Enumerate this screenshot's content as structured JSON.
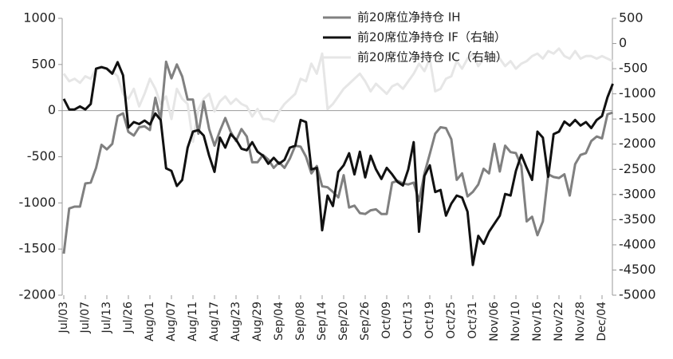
{
  "chart_data": {
    "type": "line",
    "categories": [
      "Jul/03",
      null,
      null,
      null,
      "Jul/07",
      null,
      null,
      null,
      "Jul/13",
      null,
      null,
      null,
      "Jul/26",
      null,
      null,
      null,
      "Aug/01",
      null,
      null,
      null,
      "Aug/07",
      null,
      null,
      null,
      "Aug/11",
      null,
      null,
      null,
      "Aug/17",
      null,
      null,
      null,
      "Aug/23",
      null,
      null,
      null,
      "Aug/29",
      null,
      null,
      null,
      "Sep/04",
      null,
      null,
      null,
      "Sep/08",
      null,
      null,
      null,
      "Sep/14",
      null,
      null,
      null,
      "Sep/20",
      null,
      null,
      null,
      "Sep/26",
      null,
      null,
      null,
      "Oct/09",
      null,
      null,
      null,
      "Oct/13",
      null,
      null,
      null,
      "Oct/19",
      null,
      null,
      null,
      "Oct/25",
      null,
      null,
      null,
      "Oct/31",
      null,
      null,
      null,
      "Nov/06",
      null,
      null,
      null,
      "Nov/10",
      null,
      null,
      null,
      "Nov/16",
      null,
      null,
      null,
      "Nov/22",
      null,
      null,
      null,
      "Nov/28",
      null,
      null,
      null,
      "Dec/04",
      null,
      null
    ],
    "series": [
      {
        "name": "前20席位净持仓 IH",
        "color": "#808080",
        "values": [
          -1550,
          -1060,
          -1040,
          -1040,
          -790,
          -780,
          -620,
          -370,
          -420,
          -360,
          -60,
          -30,
          -230,
          -270,
          -180,
          -170,
          -210,
          140,
          -100,
          530,
          350,
          500,
          370,
          120,
          120,
          -250,
          100,
          -200,
          -380,
          -220,
          -80,
          -230,
          -330,
          -200,
          -280,
          -560,
          -560,
          -480,
          -530,
          -620,
          -560,
          -620,
          -520,
          -380,
          -390,
          -500,
          -680,
          -600,
          -820,
          -830,
          -880,
          -940,
          -700,
          -1050,
          -1030,
          -1110,
          -1120,
          -1080,
          -1070,
          -1120,
          -1120,
          -780,
          -760,
          -790,
          -800,
          -780,
          -980,
          -680,
          -470,
          -250,
          -180,
          -190,
          -310,
          -750,
          -680,
          -930,
          -880,
          -800,
          -630,
          -680,
          -360,
          -660,
          -380,
          -450,
          -460,
          -600,
          -1200,
          -1150,
          -1350,
          -1200,
          -690,
          -720,
          -730,
          -690,
          -920,
          -580,
          -480,
          -460,
          -330,
          -280,
          -300,
          -40,
          -20
        ]
      },
      {
        "name": "前20席位净持仓 IF（右轴）",
        "color": "#111111",
        "axis": "y2",
        "values": [
          -1100,
          -1310,
          -1310,
          -1250,
          -1310,
          -1200,
          -500,
          -470,
          -500,
          -600,
          -370,
          -630,
          -1670,
          -1560,
          -1600,
          -1530,
          -1610,
          -1390,
          -1520,
          -2480,
          -2530,
          -2830,
          -2710,
          -2070,
          -1750,
          -1720,
          -1830,
          -2230,
          -2550,
          -1870,
          -2070,
          -1800,
          -1910,
          -2090,
          -2120,
          -1960,
          -2150,
          -2230,
          -2390,
          -2270,
          -2390,
          -2310,
          -2070,
          -2030,
          -1520,
          -1560,
          -2500,
          -2470,
          -3710,
          -3020,
          -3230,
          -2550,
          -2420,
          -2180,
          -2600,
          -2150,
          -2660,
          -2230,
          -2500,
          -2690,
          -2470,
          -2600,
          -2750,
          -2820,
          -2500,
          -1960,
          -3740,
          -2630,
          -2420,
          -2950,
          -2910,
          -3420,
          -3180,
          -3020,
          -3060,
          -3340,
          -4400,
          -3820,
          -3980,
          -3740,
          -3580,
          -3420,
          -2990,
          -3020,
          -2530,
          -2210,
          -2470,
          -2710,
          -1750,
          -1870,
          -2650,
          -1800,
          -1750,
          -1550,
          -1630,
          -1520,
          -1630,
          -1560,
          -1680,
          -1520,
          -1440,
          -1070,
          -800
        ]
      },
      {
        "name": "前20席位净持仓 IC（右轴）",
        "color": "#e6e6e6",
        "axis": "y2",
        "values": [
          -600,
          -750,
          -700,
          -780,
          -650,
          -700,
          -500,
          -450,
          -500,
          -550,
          -650,
          -1000,
          -1100,
          -900,
          -1250,
          -1000,
          -700,
          -900,
          -1200,
          -1050,
          -1500,
          -900,
          -1100,
          -1200,
          -1950,
          -1300,
          -1100,
          -1000,
          -1350,
          -1150,
          -1050,
          -1200,
          -1100,
          -1200,
          -1250,
          -1450,
          -1300,
          -1500,
          -1500,
          -1550,
          -1350,
          -1200,
          -1100,
          -1000,
          -700,
          -750,
          -400,
          -600,
          -200,
          -1300,
          -1200,
          -1050,
          -900,
          -800,
          -700,
          -600,
          -750,
          -950,
          -800,
          -900,
          -1000,
          -850,
          -800,
          -900,
          -750,
          -600,
          -400,
          -550,
          -300,
          -950,
          -900,
          -700,
          -650,
          -350,
          -500,
          -300,
          -200,
          -450,
          -300,
          -200,
          -250,
          -300,
          -450,
          -350,
          -500,
          -400,
          -350,
          -250,
          -200,
          -300,
          -150,
          -200,
          -100,
          -250,
          -300,
          -150,
          -300,
          -250,
          -250,
          -300,
          -250,
          -300,
          -350
        ]
      }
    ],
    "ylim": [
      -2000,
      1000
    ],
    "yticks": [
      -2000,
      -1500,
      -1000,
      -500,
      0,
      500,
      1000
    ],
    "y2lim": [
      -5000,
      500
    ],
    "y2ticks": [
      -5000,
      -4500,
      -4000,
      -3500,
      -3000,
      -2500,
      -2000,
      -1500,
      -1000,
      -500,
      0,
      500
    ]
  }
}
